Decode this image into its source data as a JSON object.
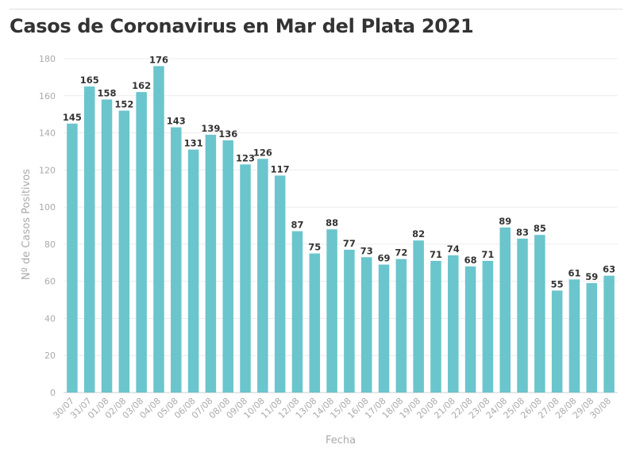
{
  "title": "Casos de Coronavirus en Mar del Plata 2021",
  "chart_data": {
    "type": "bar",
    "title": "Casos de Coronavirus en Mar del Plata 2021",
    "xlabel": "Fecha",
    "ylabel": "Nº de Casos Positivos",
    "ylim": [
      0,
      180
    ],
    "yticks": [
      0,
      20,
      40,
      60,
      80,
      100,
      120,
      140,
      160,
      180
    ],
    "grid": true,
    "legend": "none",
    "bar_color": "#6bc5cd",
    "categories": [
      "30/07",
      "31/07",
      "01/08",
      "02/08",
      "03/08",
      "04/08",
      "05/08",
      "06/08",
      "07/08",
      "08/08",
      "09/08",
      "10/08",
      "11/08",
      "12/08",
      "13/08",
      "14/08",
      "15/08",
      "16/08",
      "17/08",
      "18/08",
      "19/08",
      "20/08",
      "21/08",
      "22/08",
      "23/08",
      "24/08",
      "25/08",
      "26/08",
      "27/08",
      "28/08",
      "29/08",
      "30/08"
    ],
    "values": [
      145,
      165,
      158,
      152,
      162,
      176,
      143,
      131,
      139,
      136,
      123,
      126,
      117,
      87,
      75,
      88,
      77,
      73,
      69,
      72,
      82,
      71,
      74,
      68,
      71,
      89,
      83,
      85,
      55,
      61,
      59,
      63
    ]
  }
}
